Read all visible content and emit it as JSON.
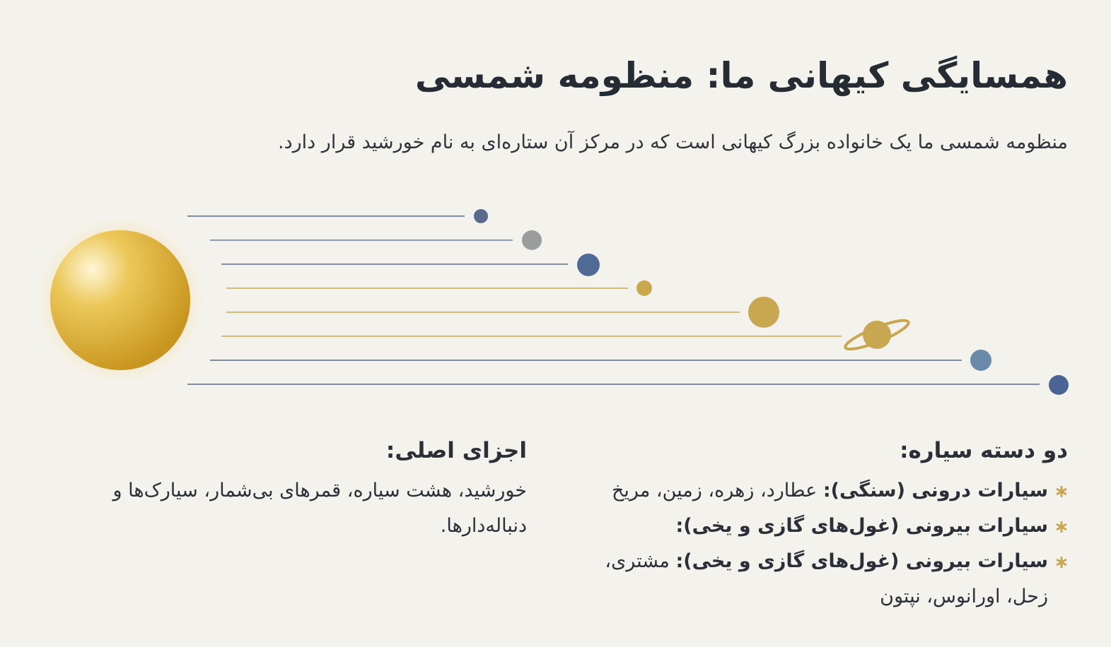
{
  "header": {
    "title": "همسایگی کیهانی ما: منظومه شمسی",
    "subtitle": "منظومه شمسی ما یک خانواده بزرگ کیهانی است که در مرکز آن ستاره‌ای به نام خورشید قرار دارد."
  },
  "planet_groups": {
    "heading": "دو دسته سیاره:",
    "items": [
      {
        "label": "سیارات درونی (سنگی):",
        "text": "عطارد، زهره، زمین، مریخ"
      },
      {
        "label": "سیارات بیرونی (غول‌های گازی و یخی):"
      },
      {
        "label": "سیارات بیرونی (غول‌های گازی و یخی):",
        "text": "مشتری، زحل، اورانوس، نپتون"
      }
    ]
  },
  "components": {
    "heading": "اجزای اصلی:",
    "text": "خورشید، هشت سیاره، قمرهای بی‌شمار، سیارک‌ها و دنباله‌دارها."
  }
}
